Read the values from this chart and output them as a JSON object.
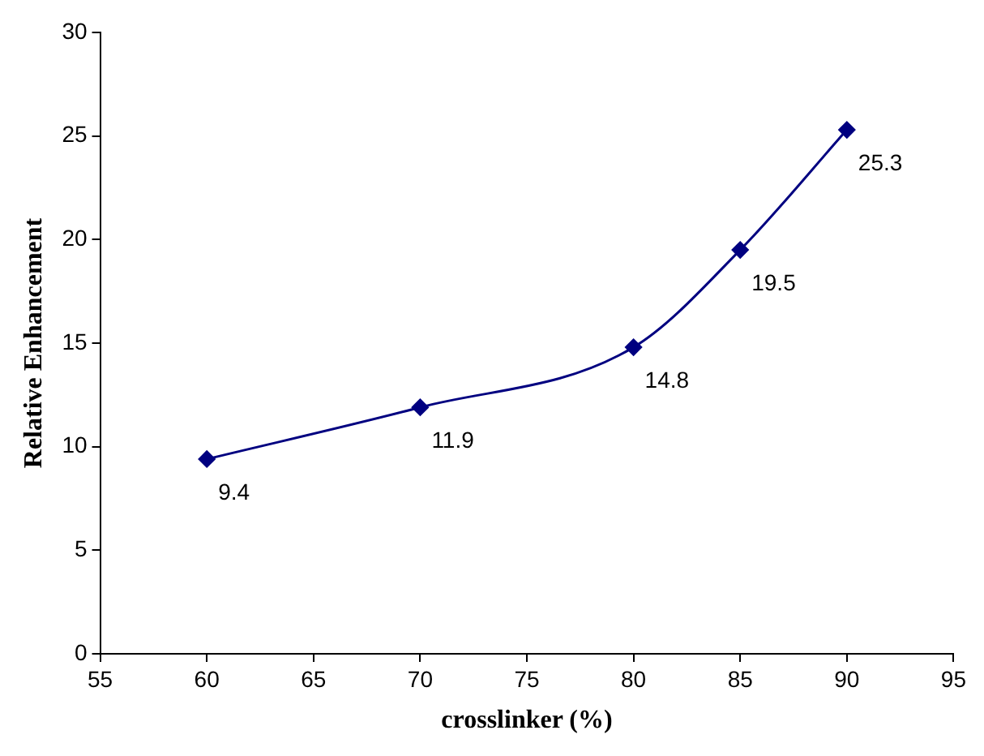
{
  "chart_data": {
    "type": "line",
    "xlabel": "crosslinker (%)",
    "ylabel": "Relative Enhancement",
    "x": [
      60,
      70,
      80,
      85,
      90
    ],
    "series": [
      {
        "color": "#000080",
        "values": [
          9.4,
          11.9,
          14.8,
          19.5,
          25.3
        ]
      }
    ],
    "xlim": [
      55,
      95
    ],
    "xticks": [
      55,
      60,
      65,
      70,
      75,
      80,
      85,
      90,
      95
    ],
    "ylim": [
      0,
      30
    ],
    "yticks": [
      0,
      5,
      10,
      15,
      20,
      25,
      30
    ],
    "grid": false,
    "legend": false,
    "marker": "diamond",
    "line_style": "solid",
    "data_labels": true
  }
}
